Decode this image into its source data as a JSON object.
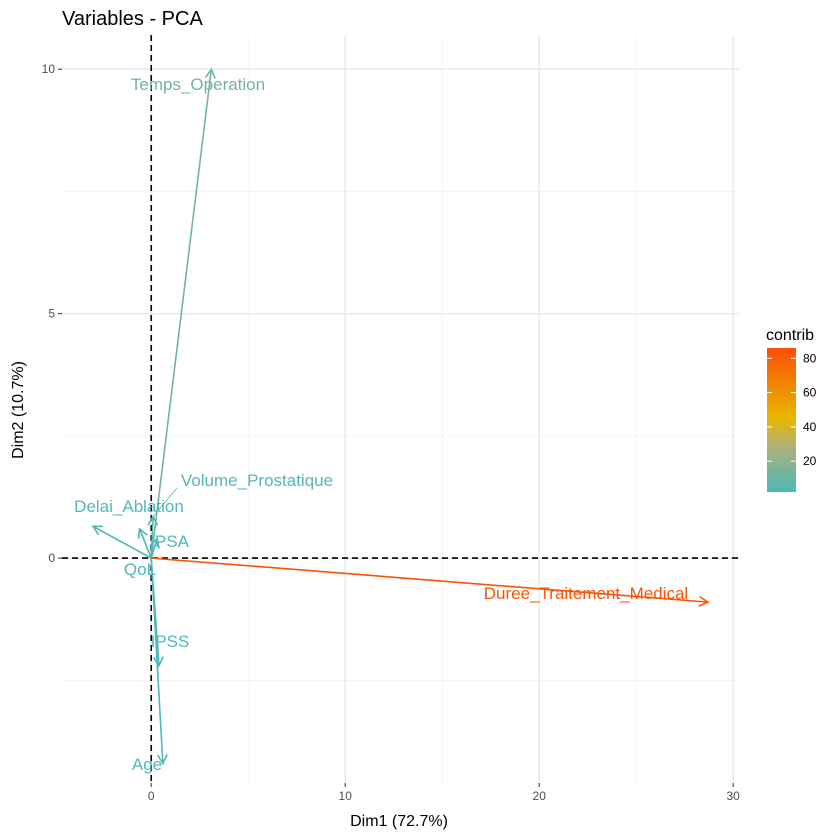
{
  "chart_data": {
    "type": "biplot",
    "title": "Variables - PCA",
    "xlabel": "Dim1 (72.7%)",
    "ylabel": "Dim2 (10.7%)",
    "xlim": [
      -4.6,
      30.3
    ],
    "ylim": [
      -4.6,
      10.7
    ],
    "x_ticks": [
      0,
      10,
      20,
      30
    ],
    "y_ticks": [
      0,
      5,
      10
    ],
    "x_minor_grid": [
      5,
      15,
      25
    ],
    "y_minor_grid": [
      -2.5,
      2.5,
      7.5
    ],
    "grid": true,
    "reference_lines": {
      "x": 0,
      "y": 0,
      "style": "dashed"
    },
    "color_scale": {
      "name": "contrib",
      "min": 2,
      "max": 86,
      "ticks": [
        20,
        40,
        60,
        80
      ],
      "stops": [
        {
          "value": 2,
          "color": "#4db8b8"
        },
        {
          "value": 30,
          "color": "#b5b073"
        },
        {
          "value": 45,
          "color": "#e7b800"
        },
        {
          "value": 86,
          "color": "#fc4e07"
        }
      ]
    },
    "legend_position": "right",
    "variables": [
      {
        "name": "Temps_Operation",
        "x": 3.1,
        "y": 10.0,
        "contrib": 12
      },
      {
        "name": "Volume_Prostatique",
        "x": 0.1,
        "y": 0.85,
        "contrib": 3
      },
      {
        "name": "Delai_Ablation",
        "x": -3.0,
        "y": 0.65,
        "contrib": 3
      },
      {
        "name": "PSA",
        "x": 0.3,
        "y": 0.4,
        "contrib": 2
      },
      {
        "name": "QoL",
        "x": -0.6,
        "y": 0.6,
        "contrib": 2
      },
      {
        "name": "Duree_Traitement_Medical",
        "x": 28.7,
        "y": -0.9,
        "contrib": 84
      },
      {
        "name": "IPSS",
        "x": 0.4,
        "y": -2.2,
        "contrib": 2
      },
      {
        "name": "Age",
        "x": 0.6,
        "y": -4.2,
        "contrib": 3
      }
    ]
  }
}
